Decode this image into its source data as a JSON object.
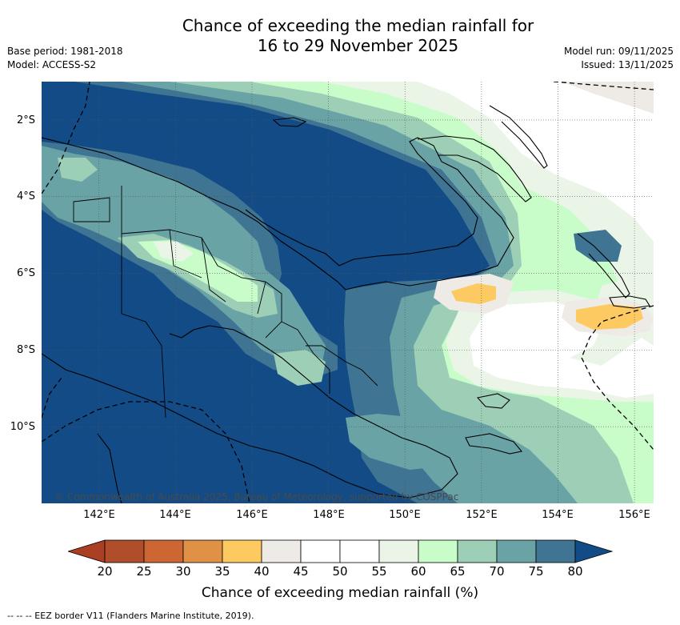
{
  "title_line1": "Chance of exceeding the median rainfall for",
  "title_line2": "16 to 29 November 2025",
  "meta_left": [
    "Base period: 1981-2018",
    "Model: ACCESS-S2"
  ],
  "meta_right": [
    "Model run: 09/11/2025",
    "Issued: 13/11/2025"
  ],
  "map": {
    "lon_range": [
      140.5,
      156.5
    ],
    "lat_range": [
      -12,
      -1
    ],
    "x_ticks": [
      "142°E",
      "144°E",
      "146°E",
      "148°E",
      "150°E",
      "152°E",
      "154°E",
      "156°E"
    ],
    "y_ticks": [
      "2°S",
      "4°S",
      "6°S",
      "8°S",
      "10°S"
    ],
    "copyright": "© Commonwealth of Australia 2025, Bureau of Meteorology, supported by COSPPac",
    "colors": {
      "c80": "#124b85",
      "c75": "#3f7493",
      "c70": "#6aa3a6",
      "c65": "#9ccfb5",
      "c60": "#c8fcc8",
      "c55": "#eaf5e8",
      "c45": "#ffffff",
      "c40": "#eeeae6",
      "c35": "#fdca62",
      "coast": "#000000"
    }
  },
  "colorbar": {
    "label": "Chance of exceeding median rainfall (%)",
    "ticks": [
      "20",
      "25",
      "30",
      "35",
      "40",
      "45",
      "50",
      "55",
      "60",
      "65",
      "70",
      "75",
      "80"
    ],
    "colors": [
      "#ab3f23",
      "#b04d2a",
      "#cc6633",
      "#e09145",
      "#fdca62",
      "#eeeae6",
      "#ffffff",
      "#ffffff",
      "#eaf5e8",
      "#c8fcc8",
      "#9ccfb5",
      "#6aa3a6",
      "#3f7493",
      "#124b85"
    ]
  },
  "footer": "--  --  -- EEZ border V11 (Flanders Marine Institute, 2019)."
}
